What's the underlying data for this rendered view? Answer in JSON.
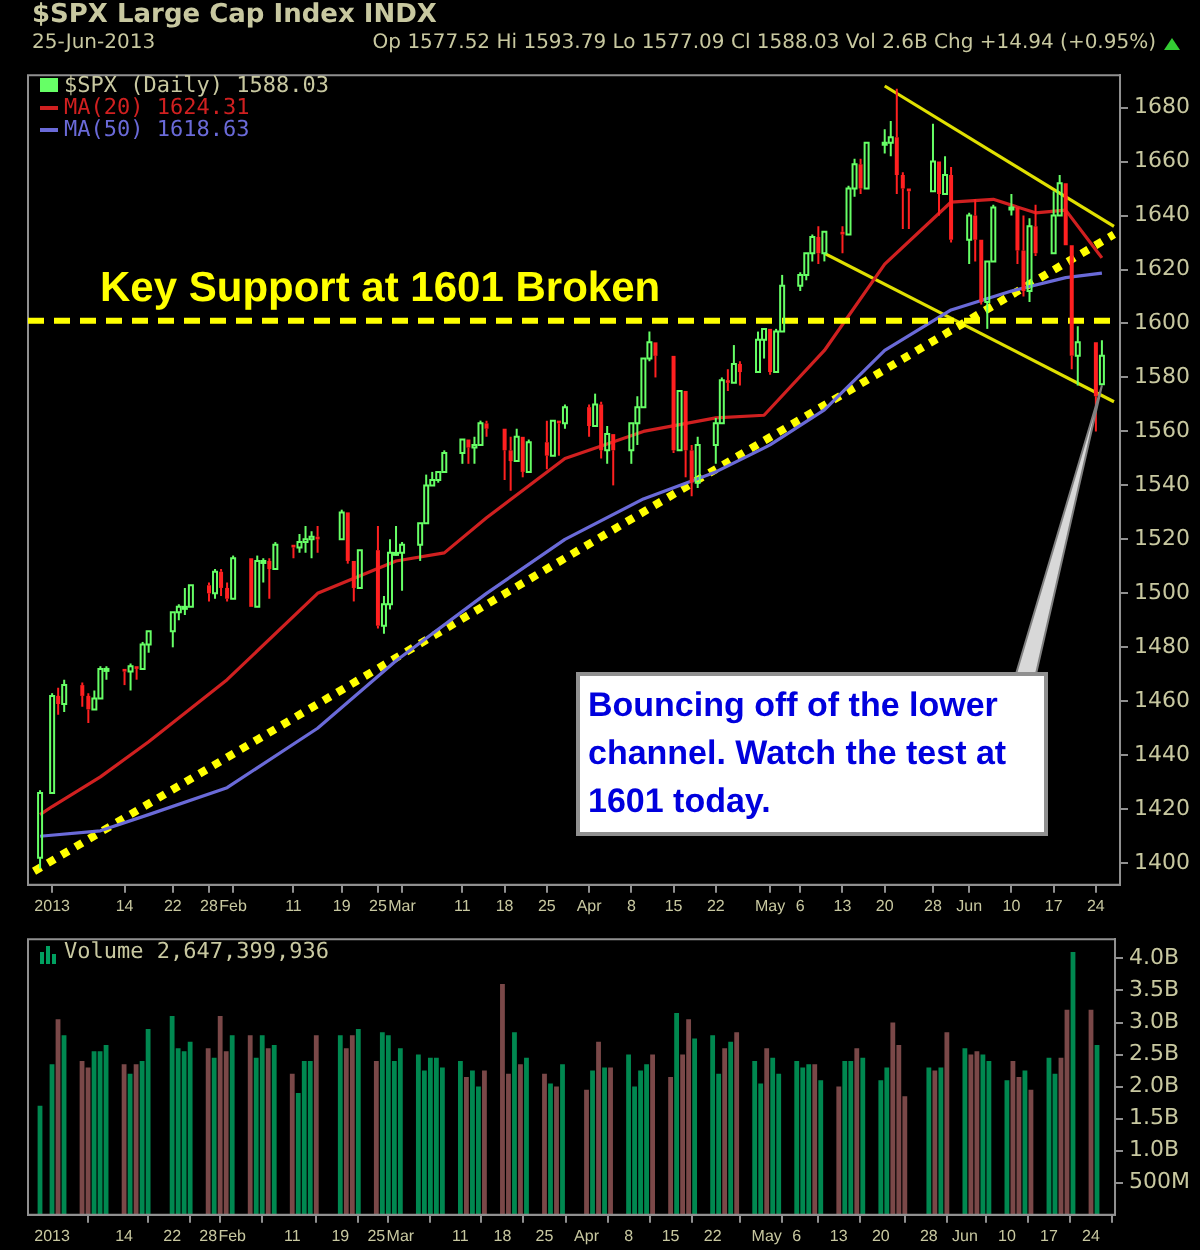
{
  "chart_data": [
    {
      "type": "candlestick",
      "title": "$SPX Large Cap Index INDX",
      "subtitle": "25-Jun-2013",
      "annotations": [
        "Op 1577.52 Hi 1593.79 Lo 1577.09 Cl 1588.03 Vol 2.6B Chg +14.94 (+0.95%)",
        {
          "text": "Bouncing off of the lower channel. Watch the test at 1601 today.",
          "x": "2013-06-25",
          "y": 1577
        }
      ],
      "x": [
        "2012-12-31",
        "2013-01-02",
        "2013-01-03",
        "2013-01-04",
        "2013-01-07",
        "2013-01-08",
        "2013-01-09",
        "2013-01-10",
        "2013-01-11",
        "2013-01-14",
        "2013-01-15",
        "2013-01-16",
        "2013-01-17",
        "2013-01-18",
        "2013-01-22",
        "2013-01-23",
        "2013-01-24",
        "2013-01-25",
        "2013-01-28",
        "2013-01-29",
        "2013-01-30",
        "2013-01-31",
        "2013-02-01",
        "2013-02-04",
        "2013-02-05",
        "2013-02-06",
        "2013-02-07",
        "2013-02-08",
        "2013-02-11",
        "2013-02-12",
        "2013-02-13",
        "2013-02-14",
        "2013-02-15",
        "2013-02-19",
        "2013-02-20",
        "2013-02-21",
        "2013-02-22",
        "2013-02-25",
        "2013-02-26",
        "2013-02-27",
        "2013-02-28",
        "2013-03-01",
        "2013-03-04",
        "2013-03-05",
        "2013-03-06",
        "2013-03-07",
        "2013-03-08",
        "2013-03-11",
        "2013-03-12",
        "2013-03-13",
        "2013-03-14",
        "2013-03-15",
        "2013-03-18",
        "2013-03-19",
        "2013-03-20",
        "2013-03-21",
        "2013-03-22",
        "2013-03-25",
        "2013-03-26",
        "2013-03-27",
        "2013-03-28",
        "2013-04-01",
        "2013-04-02",
        "2013-04-03",
        "2013-04-04",
        "2013-04-05",
        "2013-04-08",
        "2013-04-09",
        "2013-04-10",
        "2013-04-11",
        "2013-04-12",
        "2013-04-15",
        "2013-04-16",
        "2013-04-17",
        "2013-04-18",
        "2013-04-19",
        "2013-04-22",
        "2013-04-23",
        "2013-04-24",
        "2013-04-25",
        "2013-04-26",
        "2013-04-29",
        "2013-04-30",
        "2013-05-01",
        "2013-05-02",
        "2013-05-03",
        "2013-05-06",
        "2013-05-07",
        "2013-05-08",
        "2013-05-09",
        "2013-05-10",
        "2013-05-13",
        "2013-05-14",
        "2013-05-15",
        "2013-05-16",
        "2013-05-17",
        "2013-05-20",
        "2013-05-21",
        "2013-05-22",
        "2013-05-23",
        "2013-05-24",
        "2013-05-28",
        "2013-05-29",
        "2013-05-30",
        "2013-05-31",
        "2013-06-03",
        "2013-06-04",
        "2013-06-05",
        "2013-06-06",
        "2013-06-07",
        "2013-06-10",
        "2013-06-11",
        "2013-06-12",
        "2013-06-13",
        "2013-06-14",
        "2013-06-17",
        "2013-06-18",
        "2013-06-19",
        "2013-06-20",
        "2013-06-21",
        "2013-06-24",
        "2013-06-25"
      ],
      "series": [
        {
          "type": "line",
          "name": "MA(50) 1618.63",
          "color": "#6a6ad8",
          "x": [
            "2012-12-31",
            "2013-01-10",
            "2013-01-18",
            "2013-01-31",
            "2013-02-15",
            "2013-02-28",
            "2013-03-15",
            "2013-03-28",
            "2013-04-10",
            "2013-04-22",
            "2013-05-01",
            "2013-05-10",
            "2013-05-20",
            "2013-05-31",
            "2013-06-10",
            "2013-06-19",
            "2013-06-25"
          ],
          "values": [
            1410,
            1412,
            1418,
            1428,
            1450,
            1475,
            1500,
            1520,
            1535,
            1545,
            1555,
            1568,
            1590,
            1605,
            1612,
            1617,
            1618.63
          ]
        },
        {
          "type": "line",
          "name": "MA(20) 1624.31",
          "color": "#d02020",
          "x": [
            "2012-12-31",
            "2013-01-02",
            "2013-01-10",
            "2013-01-18",
            "2013-01-31",
            "2013-02-15",
            "2013-02-28",
            "2013-03-08",
            "2013-03-15",
            "2013-03-28",
            "2013-04-10",
            "2013-04-22",
            "2013-04-30",
            "2013-05-10",
            "2013-05-20",
            "2013-05-31",
            "2013-06-07",
            "2013-06-14",
            "2013-06-19",
            "2013-06-25"
          ],
          "values": [
            1418,
            1421,
            1432,
            1445,
            1468,
            1500,
            1512,
            1515,
            1528,
            1550,
            1560,
            1565,
            1566,
            1590,
            1622,
            1645,
            1646,
            1641,
            1642,
            1624.31
          ]
        },
        {
          "type": "line",
          "line_style": "dotted",
          "color": "#ffff00",
          "x": [
            "2012-12-30",
            "2013-06-27"
          ],
          "values": [
            1397,
            1633
          ]
        },
        {
          "type": "line",
          "line_style": "solid",
          "color": "#e0e000",
          "x": [
            "2013-05-20",
            "2013-06-27"
          ],
          "values": [
            1688,
            1636
          ]
        },
        {
          "type": "line",
          "line_style": "solid",
          "color": "#e0e000",
          "x": [
            "2013-05-10",
            "2013-06-27"
          ],
          "values": [
            1626,
            1571
          ]
        },
        {
          "type": "candlestick",
          "name": "$SPX (Daily) 1588.03",
          "ohlc": [
            [
              1402,
              1427,
              1398,
              1426
            ],
            [
              1426,
              1463,
              1426,
              1462
            ],
            [
              1462,
              1465,
              1455,
              1459
            ],
            [
              1459,
              1468,
              1456,
              1466
            ],
            [
              1466,
              1467,
              1458,
              1462
            ],
            [
              1462,
              1463,
              1452,
              1457
            ],
            [
              1457,
              1464,
              1457,
              1461
            ],
            [
              1461,
              1473,
              1461,
              1472
            ],
            [
              1472,
              1473,
              1468,
              1472
            ],
            [
              1472,
              1472,
              1466,
              1471
            ],
            [
              1471,
              1474,
              1464,
              1473
            ],
            [
              1473,
              1473,
              1468,
              1472
            ],
            [
              1472,
              1482,
              1472,
              1481
            ],
            [
              1481,
              1486,
              1478,
              1486
            ],
            [
              1486,
              1493,
              1480,
              1493
            ],
            [
              1493,
              1496,
              1490,
              1495
            ],
            [
              1495,
              1502,
              1492,
              1495
            ],
            [
              1495,
              1503,
              1495,
              1503
            ],
            [
              1503,
              1504,
              1497,
              1500
            ],
            [
              1500,
              1509,
              1498,
              1508
            ],
            [
              1508,
              1509,
              1499,
              1502
            ],
            [
              1502,
              1504,
              1497,
              1498
            ],
            [
              1498,
              1514,
              1498,
              1513
            ],
            [
              1513,
              1513,
              1495,
              1495
            ],
            [
              1495,
              1514,
              1495,
              1512
            ],
            [
              1512,
              1513,
              1504,
              1512
            ],
            [
              1512,
              1513,
              1498,
              1509
            ],
            [
              1509,
              1519,
              1509,
              1518
            ],
            [
              1518,
              1518,
              1513,
              1517
            ],
            [
              1517,
              1522,
              1515,
              1519
            ],
            [
              1519,
              1525,
              1515,
              1520
            ],
            [
              1520,
              1523,
              1513,
              1521
            ],
            [
              1521,
              1525,
              1515,
              1520
            ],
            [
              1520,
              1531,
              1520,
              1530
            ],
            [
              1530,
              1530,
              1511,
              1512
            ],
            [
              1512,
              1512,
              1497,
              1502
            ],
            [
              1502,
              1516,
              1502,
              1516
            ],
            [
              1516,
              1525,
              1487,
              1488
            ],
            [
              1488,
              1499,
              1485,
              1496
            ],
            [
              1496,
              1520,
              1494,
              1515
            ],
            [
              1515,
              1525,
              1514,
              1515
            ],
            [
              1515,
              1519,
              1501,
              1518
            ],
            [
              1518,
              1526,
              1512,
              1526
            ],
            [
              1526,
              1544,
              1526,
              1540
            ],
            [
              1540,
              1545,
              1540,
              1542
            ],
            [
              1542,
              1545,
              1541,
              1545
            ],
            [
              1545,
              1553,
              1545,
              1552
            ],
            [
              1552,
              1557,
              1548,
              1557
            ],
            [
              1557,
              1557,
              1548,
              1554
            ],
            [
              1554,
              1558,
              1548,
              1555
            ],
            [
              1555,
              1564,
              1555,
              1563
            ],
            [
              1563,
              1564,
              1558,
              1561
            ],
            [
              1561,
              1561,
              1542,
              1553
            ],
            [
              1553,
              1558,
              1538,
              1549
            ],
            [
              1549,
              1561,
              1549,
              1558
            ],
            [
              1558,
              1558,
              1543,
              1545
            ],
            [
              1545,
              1557,
              1545,
              1556
            ],
            [
              1556,
              1564,
              1546,
              1551
            ],
            [
              1551,
              1564,
              1551,
              1564
            ],
            [
              1564,
              1564,
              1551,
              1563
            ],
            [
              1563,
              1570,
              1561,
              1569
            ],
            [
              1569,
              1570,
              1558,
              1562
            ],
            [
              1562,
              1574,
              1562,
              1570
            ],
            [
              1570,
              1571,
              1550,
              1553
            ],
            [
              1553,
              1562,
              1548,
              1559
            ],
            [
              1559,
              1559,
              1540,
              1553
            ],
            [
              1553,
              1563,
              1548,
              1563
            ],
            [
              1563,
              1573,
              1555,
              1569
            ],
            [
              1569,
              1587,
              1569,
              1587
            ],
            [
              1587,
              1597,
              1586,
              1593
            ],
            [
              1593,
              1593,
              1580,
              1588
            ],
            [
              1588,
              1588,
              1552,
              1553
            ],
            [
              1553,
              1575,
              1553,
              1575
            ],
            [
              1575,
              1575,
              1543,
              1553
            ],
            [
              1553,
              1555,
              1536,
              1541
            ],
            [
              1541,
              1558,
              1539,
              1555
            ],
            [
              1555,
              1565,
              1548,
              1563
            ],
            [
              1563,
              1580,
              1563,
              1579
            ],
            [
              1579,
              1583,
              1575,
              1578
            ],
            [
              1578,
              1592,
              1578,
              1585
            ],
            [
              1585,
              1586,
              1577,
              1582
            ],
            [
              1582,
              1597,
              1582,
              1594
            ],
            [
              1594,
              1598,
              1587,
              1598
            ],
            [
              1598,
              1598,
              1581,
              1582
            ],
            [
              1582,
              1598,
              1582,
              1597
            ],
            [
              1597,
              1618,
              1597,
              1614
            ],
            [
              1614,
              1619,
              1612,
              1618
            ],
            [
              1618,
              1626,
              1616,
              1626
            ],
            [
              1626,
              1633,
              1623,
              1632
            ],
            [
              1632,
              1636,
              1622,
              1626
            ],
            [
              1626,
              1634,
              1623,
              1634
            ],
            [
              1634,
              1636,
              1626,
              1633
            ],
            [
              1633,
              1651,
              1633,
              1650
            ],
            [
              1650,
              1661,
              1647,
              1659
            ],
            [
              1659,
              1661,
              1648,
              1650
            ],
            [
              1650,
              1667,
              1650,
              1667
            ],
            [
              1667,
              1672,
              1663,
              1667
            ],
            [
              1667,
              1675,
              1662,
              1669
            ],
            [
              1669,
              1687,
              1648,
              1655
            ],
            [
              1655,
              1656,
              1635,
              1650
            ],
            [
              1650,
              1650,
              1635,
              1649
            ],
            [
              1649,
              1674,
              1649,
              1660
            ],
            [
              1660,
              1660,
              1640,
              1648
            ],
            [
              1648,
              1662,
              1648,
              1655
            ],
            [
              1655,
              1658,
              1630,
              1631
            ],
            [
              1631,
              1641,
              1622,
              1640
            ],
            [
              1640,
              1646,
              1623,
              1631
            ],
            [
              1631,
              1631,
              1607,
              1608
            ],
            [
              1608,
              1623,
              1598,
              1623
            ],
            [
              1623,
              1644,
              1623,
              1643
            ],
            [
              1643,
              1648,
              1640,
              1643
            ],
            [
              1643,
              1643,
              1622,
              1627
            ],
            [
              1627,
              1640,
              1610,
              1612
            ],
            [
              1612,
              1639,
              1608,
              1636
            ],
            [
              1636,
              1644,
              1625,
              1626
            ],
            [
              1626,
              1649,
              1626,
              1640
            ],
            [
              1640,
              1655,
              1640,
              1652
            ],
            [
              1652,
              1652,
              1629,
              1629
            ],
            [
              1629,
              1629,
              1583,
              1588
            ],
            [
              1588,
              1599,
              1577,
              1593
            ],
            [
              1593,
              1593,
              1560,
              1573
            ],
            [
              1577.52,
              1593.79,
              1577.09,
              1588.03
            ]
          ],
          "colors": [
            "#66ff66",
            "#66ff66",
            "#ff2020",
            "#66ff66",
            "#ff2020",
            "#ff2020",
            "#66ff66",
            "#66ff66",
            "#66ff66",
            "#ff2020",
            "#66ff66",
            "#ff2020",
            "#66ff66",
            "#66ff66",
            "#66ff66",
            "#66ff66",
            "#66ff66",
            "#66ff66",
            "#ff2020",
            "#66ff66",
            "#ff2020",
            "#ff2020",
            "#66ff66",
            "#ff2020",
            "#66ff66",
            "#66ff66",
            "#ff2020",
            "#66ff66",
            "#ff2020",
            "#66ff66",
            "#66ff66",
            "#66ff66",
            "#ff2020",
            "#66ff66",
            "#ff2020",
            "#ff2020",
            "#66ff66",
            "#ff2020",
            "#66ff66",
            "#66ff66",
            "#66ff66",
            "#66ff66",
            "#66ff66",
            "#66ff66",
            "#66ff66",
            "#66ff66",
            "#66ff66",
            "#66ff66",
            "#ff2020",
            "#66ff66",
            "#66ff66",
            "#ff2020",
            "#ff2020",
            "#ff2020",
            "#66ff66",
            "#ff2020",
            "#66ff66",
            "#ff2020",
            "#66ff66",
            "#ff2020",
            "#66ff66",
            "#ff2020",
            "#66ff66",
            "#ff2020",
            "#66ff66",
            "#ff2020",
            "#66ff66",
            "#66ff66",
            "#66ff66",
            "#66ff66",
            "#ff2020",
            "#ff2020",
            "#66ff66",
            "#ff2020",
            "#ff2020",
            "#66ff66",
            "#66ff66",
            "#66ff66",
            "#ff2020",
            "#66ff66",
            "#ff2020",
            "#66ff66",
            "#66ff66",
            "#ff2020",
            "#66ff66",
            "#66ff66",
            "#66ff66",
            "#66ff66",
            "#66ff66",
            "#ff2020",
            "#66ff66",
            "#ff2020",
            "#66ff66",
            "#66ff66",
            "#ff2020",
            "#66ff66",
            "#66ff66",
            "#66ff66",
            "#ff2020",
            "#ff2020",
            "#ff2020",
            "#66ff66",
            "#ff2020",
            "#66ff66",
            "#ff2020",
            "#66ff66",
            "#ff2020",
            "#ff2020",
            "#66ff66",
            "#66ff66",
            "#66ff66",
            "#ff2020",
            "#ff2020",
            "#66ff66",
            "#ff2020",
            "#66ff66",
            "#66ff66",
            "#ff2020",
            "#ff2020",
            "#66ff66",
            "#ff2020",
            "#66ff66"
          ]
        }
      ],
      "ref_lines": [
        {
          "axis": "y",
          "value": 1601,
          "label": "Key Support at 1601 Broken",
          "color": "#ffff00",
          "line_style": "dashed"
        }
      ],
      "legend": "top left",
      "xlim": [
        "2012-12-29",
        "2013-06-28"
      ],
      "xticks": [
        {
          "value": "2013-01-02",
          "label": "2013"
        },
        {
          "value": "2013-01-14",
          "label": "14"
        },
        {
          "value": "2013-01-22",
          "label": "22"
        },
        {
          "value": "2013-01-28",
          "label": "28"
        },
        {
          "value": "2013-02-01",
          "label": "Feb"
        },
        {
          "value": "2013-02-11",
          "label": "11"
        },
        {
          "value": "2013-02-19",
          "label": "19"
        },
        {
          "value": "2013-02-25",
          "label": "25"
        },
        {
          "value": "2013-03-01",
          "label": "Mar"
        },
        {
          "value": "2013-03-11",
          "label": "11"
        },
        {
          "value": "2013-03-18",
          "label": "18"
        },
        {
          "value": "2013-03-25",
          "label": "25"
        },
        {
          "value": "2013-04-01",
          "label": "Apr"
        },
        {
          "value": "2013-04-08",
          "label": "8"
        },
        {
          "value": "2013-04-15",
          "label": "15"
        },
        {
          "value": "2013-04-22",
          "label": "22"
        },
        {
          "value": "2013-05-01",
          "label": "May"
        },
        {
          "value": "2013-05-06",
          "label": "6"
        },
        {
          "value": "2013-05-13",
          "label": "13"
        },
        {
          "value": "2013-05-20",
          "label": "20"
        },
        {
          "value": "2013-05-28",
          "label": "28"
        },
        {
          "value": "2013-06-03",
          "label": "Jun"
        },
        {
          "value": "2013-06-10",
          "label": "10"
        },
        {
          "value": "2013-06-17",
          "label": "17"
        },
        {
          "value": "2013-06-24",
          "label": "24"
        }
      ],
      "ylim": [
        1392,
        1692
      ],
      "yticks": [
        1400,
        1420,
        1440,
        1460,
        1480,
        1500,
        1520,
        1540,
        1560,
        1580,
        1600,
        1620,
        1640,
        1660,
        1680
      ]
    },
    {
      "type": "bar",
      "title": "Volume 2,647,399,936",
      "x": [
        "2012-12-31",
        "2013-01-02",
        "2013-01-03",
        "2013-01-04",
        "2013-01-07",
        "2013-01-08",
        "2013-01-09",
        "2013-01-10",
        "2013-01-11",
        "2013-01-14",
        "2013-01-15",
        "2013-01-16",
        "2013-01-17",
        "2013-01-18",
        "2013-01-22",
        "2013-01-23",
        "2013-01-24",
        "2013-01-25",
        "2013-01-28",
        "2013-01-29",
        "2013-01-30",
        "2013-01-31",
        "2013-02-01",
        "2013-02-04",
        "2013-02-05",
        "2013-02-06",
        "2013-02-07",
        "2013-02-08",
        "2013-02-11",
        "2013-02-12",
        "2013-02-13",
        "2013-02-14",
        "2013-02-15",
        "2013-02-19",
        "2013-02-20",
        "2013-02-21",
        "2013-02-22",
        "2013-02-25",
        "2013-02-26",
        "2013-02-27",
        "2013-02-28",
        "2013-03-01",
        "2013-03-04",
        "2013-03-05",
        "2013-03-06",
        "2013-03-07",
        "2013-03-08",
        "2013-03-11",
        "2013-03-12",
        "2013-03-13",
        "2013-03-14",
        "2013-03-15",
        "2013-03-18",
        "2013-03-19",
        "2013-03-20",
        "2013-03-21",
        "2013-03-22",
        "2013-03-25",
        "2013-03-26",
        "2013-03-27",
        "2013-03-28",
        "2013-04-01",
        "2013-04-02",
        "2013-04-03",
        "2013-04-04",
        "2013-04-05",
        "2013-04-08",
        "2013-04-09",
        "2013-04-10",
        "2013-04-11",
        "2013-04-12",
        "2013-04-15",
        "2013-04-16",
        "2013-04-17",
        "2013-04-18",
        "2013-04-19",
        "2013-04-22",
        "2013-04-23",
        "2013-04-24",
        "2013-04-25",
        "2013-04-26",
        "2013-04-29",
        "2013-04-30",
        "2013-05-01",
        "2013-05-02",
        "2013-05-03",
        "2013-05-06",
        "2013-05-07",
        "2013-05-08",
        "2013-05-09",
        "2013-05-10",
        "2013-05-13",
        "2013-05-14",
        "2013-05-15",
        "2013-05-16",
        "2013-05-17",
        "2013-05-20",
        "2013-05-21",
        "2013-05-22",
        "2013-05-23",
        "2013-05-24",
        "2013-05-28",
        "2013-05-29",
        "2013-05-30",
        "2013-05-31",
        "2013-06-03",
        "2013-06-04",
        "2013-06-05",
        "2013-06-06",
        "2013-06-07",
        "2013-06-10",
        "2013-06-11",
        "2013-06-12",
        "2013-06-13",
        "2013-06-14",
        "2013-06-17",
        "2013-06-18",
        "2013-06-19",
        "2013-06-20",
        "2013-06-21",
        "2013-06-24",
        "2013-06-25"
      ],
      "values": [
        1700000000,
        2350000000,
        3050000000,
        2800000000,
        2400000000,
        2300000000,
        2550000000,
        2550000000,
        2650000000,
        2350000000,
        2200000000,
        2350000000,
        2400000000,
        2900000000,
        3100000000,
        2600000000,
        2550000000,
        2700000000,
        2600000000,
        2450000000,
        3100000000,
        2550000000,
        2800000000,
        2800000000,
        2450000000,
        2800000000,
        2600000000,
        2650000000,
        2200000000,
        1900000000,
        2400000000,
        2400000000,
        2800000000,
        2800000000,
        2600000000,
        2800000000,
        2900000000,
        2400000000,
        2850000000,
        2800000000,
        2400000000,
        2600000000,
        2500000000,
        2250000000,
        2450000000,
        2450000000,
        2300000000,
        2400000000,
        2150000000,
        2250000000,
        2000000000,
        2250000000,
        3600000000,
        2200000000,
        2850000000,
        2350000000,
        2450000000,
        2200000000,
        2050000000,
        2000000000,
        2350000000,
        1950000000,
        2250000000,
        2700000000,
        2300000000,
        2300000000,
        2500000000,
        2000000000,
        2250000000,
        2350000000,
        2500000000,
        2150000000,
        3150000000,
        2500000000,
        3050000000,
        2750000000,
        2800000000,
        2200000000,
        2600000000,
        2700000000,
        2850000000,
        2400000000,
        2050000000,
        2600000000,
        2450000000,
        2200000000,
        2400000000,
        2300000000,
        2350000000,
        2350000000,
        2100000000,
        2000000000,
        2400000000,
        2400000000,
        2600000000,
        2450000000,
        2100000000,
        2300000000,
        3000000000,
        2650000000,
        1850000000,
        2300000000,
        2250000000,
        2300000000,
        2850000000,
        2600000000,
        2500000000,
        2550000000,
        2500000000,
        2400000000,
        2100000000,
        2400000000,
        2150000000,
        2250000000,
        1950000000,
        2450000000,
        2200000000,
        2450000000,
        3200000000,
        4100000000,
        3200000000,
        2647399936
      ],
      "colors": [
        "#008850",
        "#008850",
        "#7a4848",
        "#008850",
        "#7a4848",
        "#7a4848",
        "#008850",
        "#008850",
        "#008850",
        "#7a4848",
        "#008850",
        "#7a4848",
        "#008850",
        "#008850",
        "#008850",
        "#008850",
        "#008850",
        "#008850",
        "#7a4848",
        "#008850",
        "#7a4848",
        "#7a4848",
        "#008850",
        "#7a4848",
        "#008850",
        "#008850",
        "#7a4848",
        "#008850",
        "#7a4848",
        "#008850",
        "#008850",
        "#008850",
        "#7a4848",
        "#008850",
        "#7a4848",
        "#7a4848",
        "#008850",
        "#7a4848",
        "#008850",
        "#008850",
        "#008850",
        "#008850",
        "#008850",
        "#008850",
        "#008850",
        "#008850",
        "#008850",
        "#008850",
        "#7a4848",
        "#008850",
        "#008850",
        "#7a4848",
        "#7a4848",
        "#7a4848",
        "#008850",
        "#7a4848",
        "#008850",
        "#7a4848",
        "#008850",
        "#7a4848",
        "#008850",
        "#7a4848",
        "#008850",
        "#7a4848",
        "#008850",
        "#7a4848",
        "#008850",
        "#008850",
        "#008850",
        "#008850",
        "#7a4848",
        "#7a4848",
        "#008850",
        "#7a4848",
        "#7a4848",
        "#008850",
        "#008850",
        "#008850",
        "#7a4848",
        "#008850",
        "#7a4848",
        "#008850",
        "#008850",
        "#7a4848",
        "#008850",
        "#008850",
        "#008850",
        "#008850",
        "#008850",
        "#7a4848",
        "#008850",
        "#7a4848",
        "#008850",
        "#008850",
        "#7a4848",
        "#008850",
        "#008850",
        "#008850",
        "#7a4848",
        "#7a4848",
        "#7a4848",
        "#008850",
        "#7a4848",
        "#008850",
        "#7a4848",
        "#008850",
        "#7a4848",
        "#7a4848",
        "#008850",
        "#008850",
        "#008850",
        "#7a4848",
        "#7a4848",
        "#008850",
        "#7a4848",
        "#008850",
        "#008850",
        "#7a4848",
        "#7a4848",
        "#008850",
        "#7a4848",
        "#008850"
      ],
      "xlim": [
        "2012-12-29",
        "2013-06-28"
      ],
      "xticks": [
        {
          "value": "2013-01-02",
          "label": "2013"
        },
        {
          "value": "2013-01-14",
          "label": "14"
        },
        {
          "value": "2013-01-22",
          "label": "22"
        },
        {
          "value": "2013-01-28",
          "label": "28"
        },
        {
          "value": "2013-02-01",
          "label": "Feb"
        },
        {
          "value": "2013-02-11",
          "label": "11"
        },
        {
          "value": "2013-02-19",
          "label": "19"
        },
        {
          "value": "2013-02-25",
          "label": "25"
        },
        {
          "value": "2013-03-01",
          "label": "Mar"
        },
        {
          "value": "2013-03-11",
          "label": "11"
        },
        {
          "value": "2013-03-18",
          "label": "18"
        },
        {
          "value": "2013-03-25",
          "label": "25"
        },
        {
          "value": "2013-04-01",
          "label": "Apr"
        },
        {
          "value": "2013-04-08",
          "label": "8"
        },
        {
          "value": "2013-04-15",
          "label": "15"
        },
        {
          "value": "2013-04-22",
          "label": "22"
        },
        {
          "value": "2013-05-01",
          "label": "May"
        },
        {
          "value": "2013-05-06",
          "label": "6"
        },
        {
          "value": "2013-05-13",
          "label": "13"
        },
        {
          "value": "2013-05-20",
          "label": "20"
        },
        {
          "value": "2013-05-28",
          "label": "28"
        },
        {
          "value": "2013-06-03",
          "label": "Jun"
        },
        {
          "value": "2013-06-10",
          "label": "10"
        },
        {
          "value": "2013-06-17",
          "label": "17"
        },
        {
          "value": "2013-06-24",
          "label": "24"
        }
      ],
      "ylim": [
        0,
        4300000000
      ],
      "yticks": [
        {
          "value": 500000000,
          "label": "500M"
        },
        {
          "value": 1000000000,
          "label": "1.0B"
        },
        {
          "value": 1500000000,
          "label": "1.5B"
        },
        {
          "value": 2000000000,
          "label": "2.0B"
        },
        {
          "value": 2500000000,
          "label": "2.5B"
        },
        {
          "value": 3000000000,
          "label": "3.0B"
        },
        {
          "value": 3500000000,
          "label": "3.5B"
        },
        {
          "value": 4000000000,
          "label": "4.0B"
        }
      ]
    }
  ]
}
